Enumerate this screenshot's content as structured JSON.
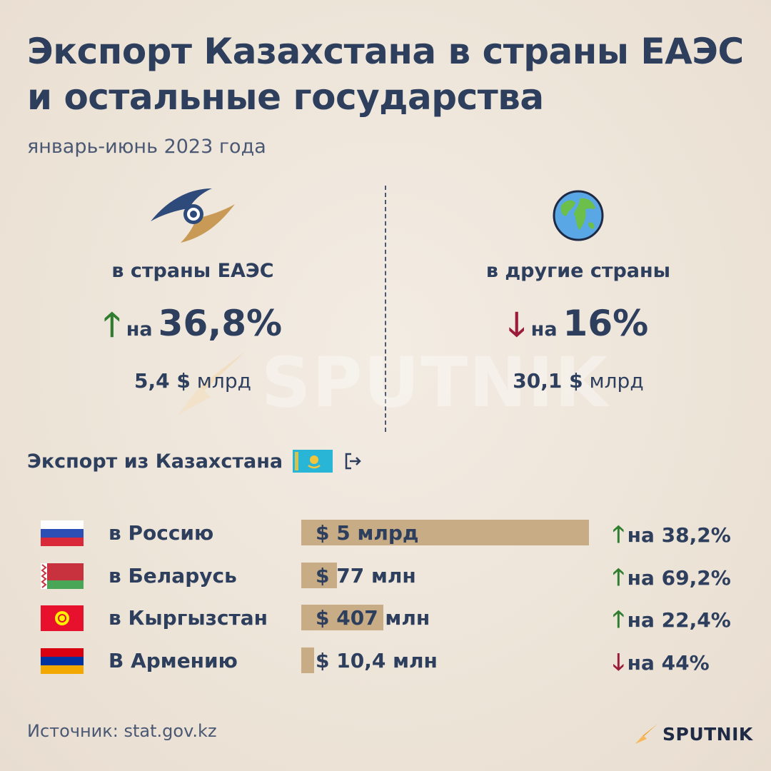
{
  "title": "Экспорт Казахстана в страны ЕАЭС и остальные государства",
  "subtitle": "январь-июнь 2023 года",
  "left": {
    "icon": "eaeu-emblem-icon",
    "label": "в страны ЕАЭС",
    "direction": "up",
    "arrow": "🡑",
    "prefix": "на",
    "percent": "36,8%",
    "amount_value": "5,4 $",
    "amount_unit": "млрд"
  },
  "right": {
    "icon": "globe-icon",
    "label": "в другие страны",
    "direction": "down",
    "arrow": "🡓",
    "prefix": "на",
    "percent": "16%",
    "amount_value": "30,1 $",
    "amount_unit": "млрд"
  },
  "section_title": "Экспорт из Казахстана",
  "chart_data": {
    "type": "bar",
    "categories": [
      "в Россию",
      "в Беларусь",
      "в Кыргызстан",
      "В Армению"
    ],
    "values_usd_mln": [
      5000,
      77,
      407,
      10.4
    ],
    "value_labels": [
      "$ 5 млрд",
      "$ 77 млн",
      "$ 407 млн",
      "$ 10,4 млн"
    ],
    "growth_labels": [
      "на 38,2%",
      "на 69,2%",
      "на 22,4%",
      "на 44%"
    ],
    "growth_directions": [
      "up",
      "up",
      "up",
      "down"
    ]
  },
  "rows": [
    {
      "country": "в Россию",
      "flag": "russia-flag-icon",
      "value": "$ 5 млрд",
      "growth_arrow": "🡑",
      "growth": "на 38,2%"
    },
    {
      "country": "в Беларусь",
      "flag": "belarus-flag-icon",
      "value": "$ 77 млн",
      "growth_arrow": "🡑",
      "growth": "на 69,2%"
    },
    {
      "country": "в Кыргызстан",
      "flag": "kyrgyzstan-flag-icon",
      "value": "$ 407 млн",
      "growth_arrow": "🡑",
      "growth": "на 22,4%"
    },
    {
      "country": "В Армению",
      "flag": "armenia-flag-icon",
      "value": "$ 10,4 млн",
      "growth_arrow": "🡓",
      "growth": "на 44%"
    }
  ],
  "source": "Источник: stat.gov.kz",
  "logo": "SPUTNIK",
  "colors": {
    "text": "#2e3f5e",
    "up": "#2f7d2e",
    "down": "#9b1b3a",
    "bar": "#c8ac85",
    "background": "#ede4d8"
  }
}
